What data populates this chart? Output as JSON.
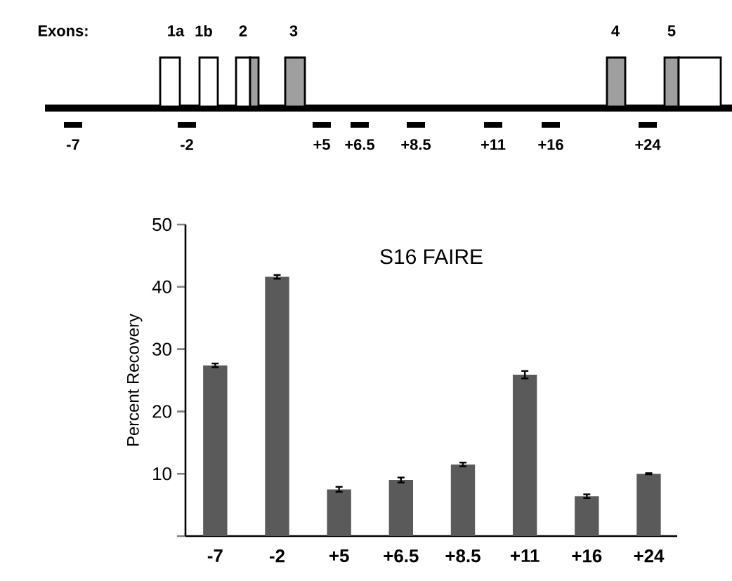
{
  "chart_data": {
    "type": "bar",
    "title": "S16 FAIRE",
    "ylabel": "Percent Recovery",
    "categories": [
      "-7",
      "-2",
      "+5",
      "+6.5",
      "+8.5",
      "+11",
      "+16",
      "+24"
    ],
    "values": [
      27.4,
      41.6,
      7.5,
      9.0,
      11.5,
      25.9,
      6.4,
      10.0
    ],
    "errors": [
      0.3,
      0.3,
      0.4,
      0.4,
      0.3,
      0.6,
      0.3,
      0.1
    ],
    "color": "#5a5a5a",
    "ylim": [
      0,
      50
    ],
    "yticks": [
      {
        "value": 0,
        "label": null
      },
      10,
      20,
      30,
      40,
      50
    ],
    "annotations": [
      "Exons:",
      "1a",
      "1b",
      "2",
      "3",
      "4",
      "5",
      "-7",
      "-2",
      "+5",
      "+6.5",
      "+8.5",
      "+11",
      "+16",
      "+24"
    ]
  }
}
